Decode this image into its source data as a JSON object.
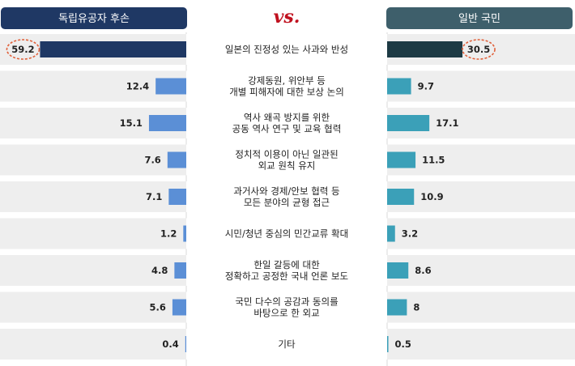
{
  "header": {
    "left_title": "독립유공자 후손",
    "vs_label": "vs.",
    "right_title": "일반 국민"
  },
  "colors": {
    "left_header": "#1f3864",
    "right_header": "#3e5f6b",
    "left_top_bar": "#1f3864",
    "right_top_bar": "#1d3a44",
    "left_bar": "#5b8fd6",
    "right_bar": "#3ba0b8",
    "row_band": "#eeeeee",
    "highlight_circle": "#e0603a",
    "vs": "#c0111f"
  },
  "chart_data": {
    "type": "bar",
    "categories": [
      [
        "일본의 진정성 있는 사과와 반성"
      ],
      [
        "강제동원, 위안부 등",
        "개별 피해자에 대한 보상 논의"
      ],
      [
        "역사 왜곡 방지를 위한",
        "공동 역사 연구 및 교육 협력"
      ],
      [
        "정치적 이용이 아닌 일관된",
        "외교 원칙 유지"
      ],
      [
        "과거사와 경제/안보 협력 등",
        "모든 분야의 균형 접근"
      ],
      [
        "시민/청년 중심의 민간교류 확대"
      ],
      [
        "한일 갈등에 대한",
        "정확하고 공정한 국내 언론 보도"
      ],
      [
        "국민 다수의 공감과 동의를",
        "바탕으로 한 외교"
      ],
      [
        "기타"
      ]
    ],
    "series": [
      {
        "name": "독립유공자 후손",
        "values": [
          59.2,
          12.4,
          15.1,
          7.6,
          7.1,
          1.2,
          4.8,
          5.6,
          0.4
        ]
      },
      {
        "name": "일반 국민",
        "values": [
          30.5,
          9.7,
          17.1,
          11.5,
          10.9,
          3.2,
          8.6,
          8,
          0.5
        ]
      }
    ],
    "value_labels": {
      "left": [
        "59.2",
        "12.4",
        "15.1",
        "7.6",
        "7.1",
        "1.2",
        "4.8",
        "5.6",
        "0.4"
      ],
      "right": [
        "30.5",
        "9.7",
        "17.1",
        "11.5",
        "10.9",
        "3.2",
        "8.6",
        "8",
        "0.5"
      ]
    },
    "highlighted_category_index": 0
  }
}
